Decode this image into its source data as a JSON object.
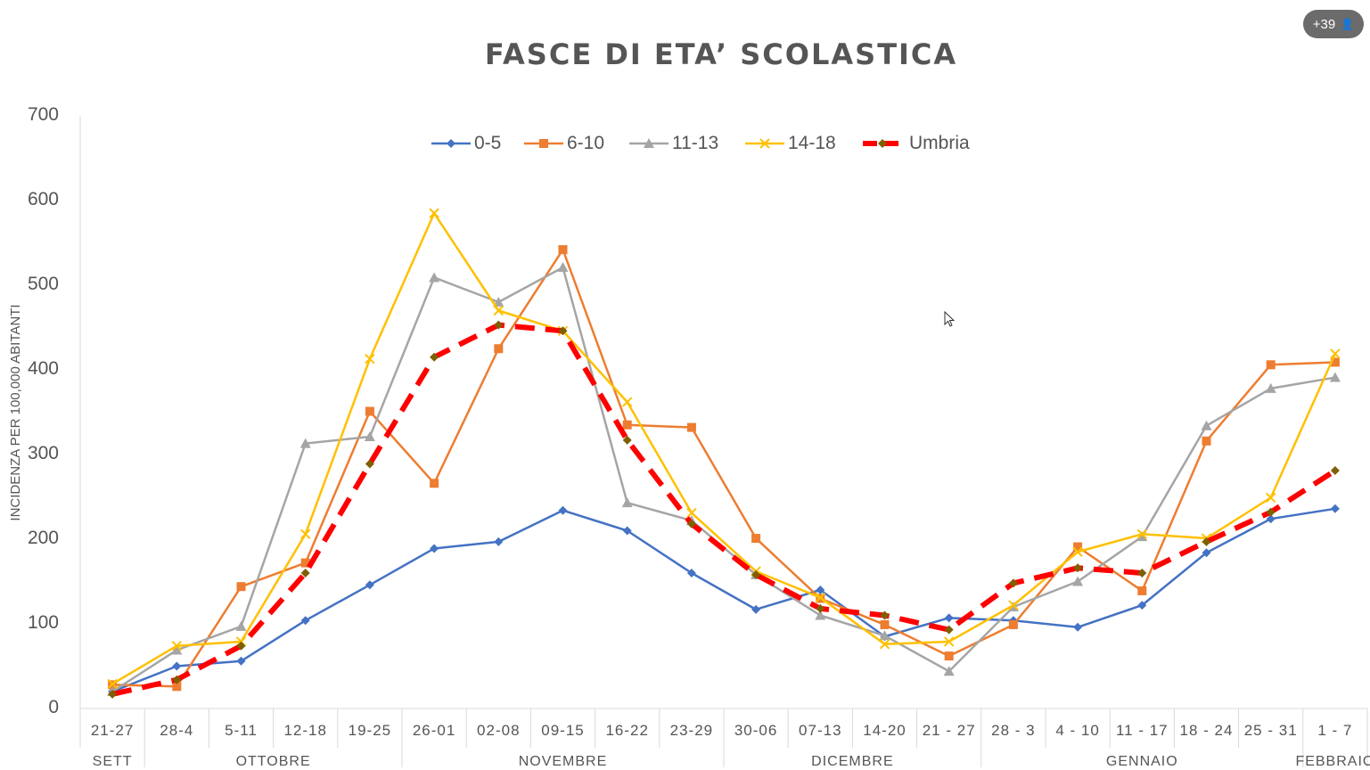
{
  "badge": {
    "count": "+39",
    "icon": "person-icon"
  },
  "chart_data": {
    "type": "line",
    "title": "FASCE DI ETA’ SCOLASTICA",
    "ylabel": "INCIDENZA PER 100,000 ABITANTI",
    "xlabel": "",
    "ylim": [
      0,
      700
    ],
    "yticks": [
      "0",
      "100",
      "200",
      "300",
      "400",
      "500",
      "600",
      "700"
    ],
    "categories": [
      "21-27",
      "28-4",
      "5-11",
      "12-18",
      "19-25",
      "26-01",
      "02-08",
      "09-15",
      "16-22",
      "23-29",
      "30-06",
      "07-13",
      "14-20",
      "21 - 27",
      "28 - 3",
      "4 - 10",
      "11 - 17",
      "18 - 24",
      "25 - 31",
      "1 - 7"
    ],
    "months": [
      {
        "label": "SETT",
        "from": 0,
        "to": 0
      },
      {
        "label": "OTTOBRE",
        "from": 1,
        "to": 4
      },
      {
        "label": "NOVEMBRE",
        "from": 5,
        "to": 9
      },
      {
        "label": "DICEMBRE",
        "from": 10,
        "to": 13
      },
      {
        "label": "GENNAIO",
        "from": 14,
        "to": 18
      },
      {
        "label": "FEBBRAIO",
        "from": 19,
        "to": 19
      }
    ],
    "legend_position": "top",
    "grid": false,
    "series": [
      {
        "name": "0-5",
        "color": "#4472c4",
        "marker": "diamond",
        "dashed": false,
        "values": [
          20,
          50,
          56,
          104,
          146,
          189,
          197,
          234,
          210,
          160,
          117,
          140,
          85,
          107,
          104,
          96,
          122,
          184,
          224,
          236
        ]
      },
      {
        "name": "6-10",
        "color": "#ed7d31",
        "marker": "square",
        "dashed": false,
        "values": [
          28,
          26,
          144,
          172,
          351,
          266,
          425,
          542,
          335,
          332,
          201,
          130,
          99,
          62,
          99,
          191,
          139,
          316,
          406,
          409
        ]
      },
      {
        "name": "11-13",
        "color": "#a5a5a5",
        "marker": "triangle",
        "dashed": false,
        "values": [
          20,
          69,
          97,
          313,
          321,
          509,
          480,
          521,
          243,
          222,
          158,
          110,
          86,
          44,
          120,
          150,
          203,
          334,
          378,
          391
        ]
      },
      {
        "name": "14-18",
        "color": "#ffc000",
        "marker": "x",
        "dashed": false,
        "values": [
          29,
          74,
          79,
          206,
          413,
          585,
          470,
          446,
          362,
          231,
          162,
          131,
          76,
          79,
          122,
          185,
          206,
          201,
          249,
          419
        ]
      },
      {
        "name": "Umbria",
        "color": "#ff0000",
        "marker": "diamond",
        "marker_color": "#7f6000",
        "dashed": true,
        "values": [
          17,
          34,
          74,
          160,
          289,
          415,
          453,
          446,
          317,
          218,
          158,
          118,
          110,
          93,
          148,
          166,
          160,
          197,
          232,
          281
        ]
      }
    ]
  }
}
